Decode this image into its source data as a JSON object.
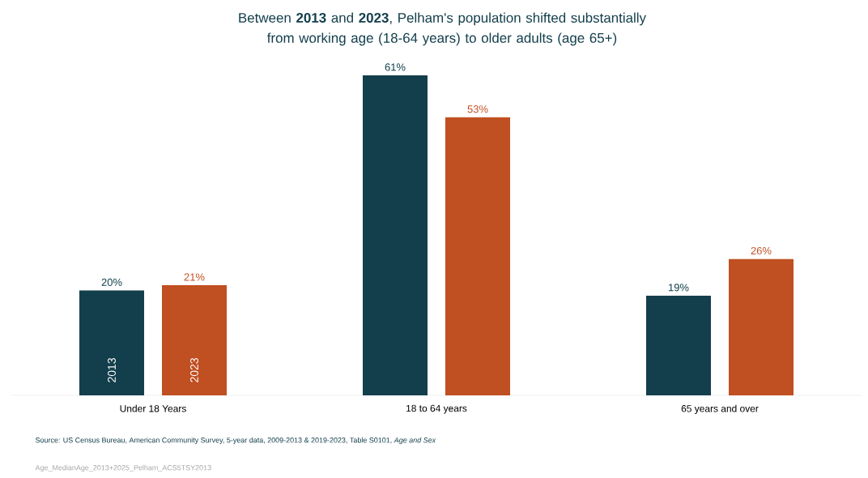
{
  "chart_data": {
    "type": "bar",
    "title": "Between **2013** and **2023**, Pelham's population shifted substantially from working age (18-64 years) to older adults (age 65+)",
    "categories": [
      "Under 18 Years",
      "18 to 64 years",
      "65 years and over"
    ],
    "series": [
      {
        "name": "2013",
        "color": "#133f4c",
        "values": [
          20,
          61,
          19
        ],
        "value_labels": [
          "20%",
          "61%",
          "19%"
        ]
      },
      {
        "name": "2023",
        "color": "#c04f21",
        "values": [
          21,
          53,
          26
        ],
        "value_labels": [
          "21%",
          "53%",
          "26%"
        ]
      }
    ],
    "legend": false,
    "annotations": [
      "Source: US Census Bureau, American Community Survey, 5-year data, 2009-2013 & 2019-2023, Table S0101, *Age and Sex*",
      "Age_MedianAge_2013+2025_Pelham_ACS5TSY2013"
    ]
  }
}
